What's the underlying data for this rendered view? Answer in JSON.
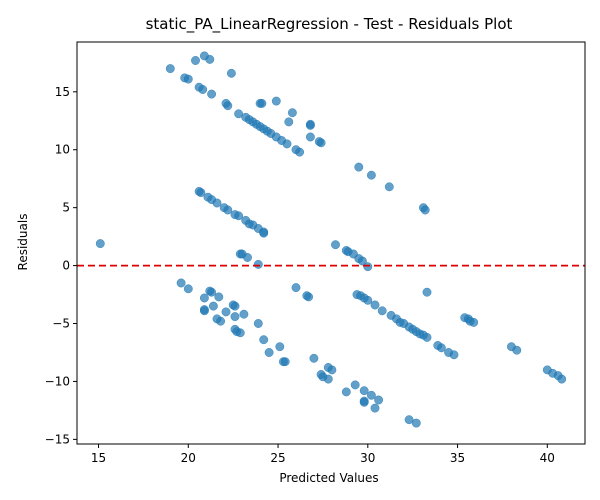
{
  "chart_data": {
    "type": "scatter",
    "title": "static_PA_LinearRegression - Test - Residuals Plot",
    "xlabel": "Predicted Values",
    "ylabel": "Residuals",
    "xlim": [
      13.8,
      42.1
    ],
    "ylim": [
      -15.4,
      19.3
    ],
    "xticks": [
      15,
      20,
      25,
      30,
      35,
      40
    ],
    "yticks": [
      -15,
      -10,
      -5,
      0,
      5,
      10,
      15
    ],
    "grid": false,
    "reference_line": {
      "y": 0,
      "color": "#dd0000",
      "style": "dashed"
    },
    "point_color": "#1f77b4",
    "points": [
      [
        19.0,
        17.0
      ],
      [
        20.4,
        17.7
      ],
      [
        20.9,
        18.1
      ],
      [
        21.2,
        17.8
      ],
      [
        22.4,
        16.6
      ],
      [
        19.8,
        16.2
      ],
      [
        20.0,
        16.1
      ],
      [
        20.6,
        15.4
      ],
      [
        20.8,
        15.2
      ],
      [
        21.3,
        14.8
      ],
      [
        22.1,
        14.0
      ],
      [
        22.2,
        13.8
      ],
      [
        24.0,
        14.0
      ],
      [
        24.1,
        14.0
      ],
      [
        24.9,
        14.2
      ],
      [
        22.8,
        13.1
      ],
      [
        23.2,
        12.8
      ],
      [
        23.4,
        12.6
      ],
      [
        23.6,
        12.4
      ],
      [
        23.8,
        12.2
      ],
      [
        24.0,
        12.0
      ],
      [
        24.2,
        11.8
      ],
      [
        24.4,
        11.6
      ],
      [
        24.6,
        11.4
      ],
      [
        24.9,
        11.1
      ],
      [
        25.2,
        10.8
      ],
      [
        25.5,
        10.5
      ],
      [
        25.6,
        12.4
      ],
      [
        25.8,
        13.2
      ],
      [
        26.8,
        12.2
      ],
      [
        26.8,
        12.1
      ],
      [
        26.8,
        11.1
      ],
      [
        27.3,
        10.7
      ],
      [
        27.4,
        10.6
      ],
      [
        26.0,
        10.0
      ],
      [
        26.2,
        9.8
      ],
      [
        29.5,
        8.5
      ],
      [
        30.2,
        7.8
      ],
      [
        31.2,
        6.8
      ],
      [
        33.1,
        5.0
      ],
      [
        33.2,
        4.8
      ],
      [
        20.6,
        6.4
      ],
      [
        20.7,
        6.3
      ],
      [
        21.1,
        5.9
      ],
      [
        21.3,
        5.7
      ],
      [
        21.6,
        5.4
      ],
      [
        22.0,
        5.0
      ],
      [
        22.2,
        4.8
      ],
      [
        22.6,
        4.4
      ],
      [
        22.8,
        4.3
      ],
      [
        23.2,
        3.9
      ],
      [
        23.4,
        3.6
      ],
      [
        23.6,
        3.5
      ],
      [
        23.9,
        3.2
      ],
      [
        24.2,
        2.9
      ],
      [
        24.2,
        2.8
      ],
      [
        15.1,
        1.9
      ],
      [
        22.9,
        1.0
      ],
      [
        23.0,
        1.0
      ],
      [
        23.3,
        0.7
      ],
      [
        23.9,
        0.1
      ],
      [
        28.2,
        1.8
      ],
      [
        28.8,
        1.3
      ],
      [
        28.9,
        1.2
      ],
      [
        29.2,
        1.0
      ],
      [
        29.5,
        0.6
      ],
      [
        29.7,
        0.4
      ],
      [
        30.0,
        -0.1
      ],
      [
        19.6,
        -1.5
      ],
      [
        20.0,
        -2.0
      ],
      [
        21.2,
        -2.2
      ],
      [
        21.3,
        -2.3
      ],
      [
        21.7,
        -2.7
      ],
      [
        20.9,
        -2.8
      ],
      [
        26.0,
        -1.9
      ],
      [
        26.6,
        -2.6
      ],
      [
        26.7,
        -2.7
      ],
      [
        29.4,
        -2.5
      ],
      [
        29.6,
        -2.6
      ],
      [
        29.8,
        -2.8
      ],
      [
        30.0,
        -3.0
      ],
      [
        30.4,
        -3.4
      ],
      [
        21.4,
        -3.5
      ],
      [
        22.5,
        -3.4
      ],
      [
        22.6,
        -3.5
      ],
      [
        20.9,
        -3.8
      ],
      [
        20.9,
        -3.9
      ],
      [
        22.1,
        -4.0
      ],
      [
        22.6,
        -4.4
      ],
      [
        23.1,
        -4.2
      ],
      [
        21.6,
        -4.6
      ],
      [
        21.8,
        -4.8
      ],
      [
        23.9,
        -5.0
      ],
      [
        22.6,
        -5.5
      ],
      [
        22.7,
        -5.7
      ],
      [
        22.9,
        -5.8
      ],
      [
        24.2,
        -6.4
      ],
      [
        30.8,
        -3.9
      ],
      [
        31.3,
        -4.3
      ],
      [
        31.6,
        -4.6
      ],
      [
        31.8,
        -4.9
      ],
      [
        32.0,
        -5.0
      ],
      [
        32.3,
        -5.3
      ],
      [
        32.5,
        -5.5
      ],
      [
        32.7,
        -5.7
      ],
      [
        32.9,
        -5.9
      ],
      [
        33.1,
        -6.0
      ],
      [
        33.3,
        -6.2
      ],
      [
        33.3,
        -2.3
      ],
      [
        35.4,
        -4.5
      ],
      [
        35.6,
        -4.6
      ],
      [
        35.7,
        -4.8
      ],
      [
        35.9,
        -4.9
      ],
      [
        33.9,
        -6.9
      ],
      [
        34.1,
        -7.1
      ],
      [
        34.5,
        -7.5
      ],
      [
        34.8,
        -7.7
      ],
      [
        38.0,
        -7.0
      ],
      [
        38.3,
        -7.3
      ],
      [
        25.1,
        -7.0
      ],
      [
        24.5,
        -7.5
      ],
      [
        25.3,
        -8.3
      ],
      [
        25.4,
        -8.3
      ],
      [
        27.0,
        -8.0
      ],
      [
        27.8,
        -8.8
      ],
      [
        28.0,
        -9.0
      ],
      [
        27.4,
        -9.4
      ],
      [
        27.5,
        -9.6
      ],
      [
        27.8,
        -9.8
      ],
      [
        40.0,
        -9.0
      ],
      [
        40.3,
        -9.3
      ],
      [
        40.6,
        -9.5
      ],
      [
        40.8,
        -9.8
      ],
      [
        29.3,
        -10.3
      ],
      [
        28.8,
        -10.9
      ],
      [
        29.8,
        -10.8
      ],
      [
        30.2,
        -11.2
      ],
      [
        30.6,
        -11.6
      ],
      [
        29.8,
        -11.7
      ],
      [
        29.8,
        -11.8
      ],
      [
        30.4,
        -12.3
      ],
      [
        32.3,
        -13.3
      ],
      [
        32.7,
        -13.6
      ]
    ]
  }
}
